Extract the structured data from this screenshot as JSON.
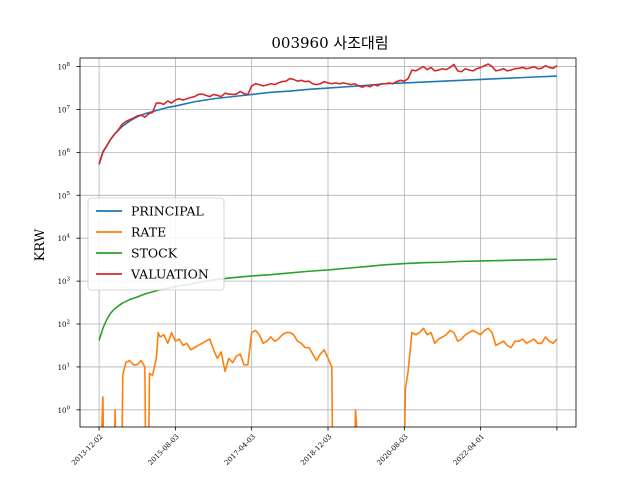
{
  "chart_data": {
    "type": "line",
    "title": "003960 사조대림",
    "ylabel": "KRW",
    "xlabel": "",
    "yscale": "log",
    "ylim_exp": [
      -0.4,
      8.2
    ],
    "y_ticks": [
      {
        "exp": 0,
        "label": "10^0"
      },
      {
        "exp": 1,
        "label": "10^1"
      },
      {
        "exp": 2,
        "label": "10^2"
      },
      {
        "exp": 3,
        "label": "10^3"
      },
      {
        "exp": 4,
        "label": "10^4"
      },
      {
        "exp": 5,
        "label": "10^5"
      },
      {
        "exp": 6,
        "label": "10^6"
      },
      {
        "exp": 7,
        "label": "10^7"
      },
      {
        "exp": 8,
        "label": "10^8"
      }
    ],
    "x_ticks": [
      {
        "t": 0,
        "label": "2013-12-02"
      },
      {
        "t": 20,
        "label": "2015-08-03"
      },
      {
        "t": 40,
        "label": "2017-04-03"
      },
      {
        "t": 60,
        "label": "2018-12-03"
      },
      {
        "t": 80,
        "label": "2020-08-03"
      },
      {
        "t": 100,
        "label": "2022-04-01"
      },
      {
        "t": 120,
        "label": ""
      }
    ],
    "xlim": [
      -5,
      125
    ],
    "grid": true,
    "legend_position": "center-left",
    "series": [
      {
        "name": "PRINCIPAL",
        "color": "#1f77b4",
        "points": [
          [
            0,
            5.72
          ],
          [
            1,
            6.0
          ],
          [
            2,
            6.15
          ],
          [
            3,
            6.3
          ],
          [
            4,
            6.42
          ],
          [
            6,
            6.6
          ],
          [
            8,
            6.73
          ],
          [
            10,
            6.83
          ],
          [
            12,
            6.9
          ],
          [
            14,
            6.95
          ],
          [
            16,
            7.0
          ],
          [
            18,
            7.05
          ],
          [
            20,
            7.08
          ],
          [
            25,
            7.18
          ],
          [
            30,
            7.25
          ],
          [
            35,
            7.3
          ],
          [
            40,
            7.35
          ],
          [
            45,
            7.4
          ],
          [
            50,
            7.43
          ],
          [
            55,
            7.47
          ],
          [
            60,
            7.5
          ],
          [
            65,
            7.53
          ],
          [
            70,
            7.56
          ],
          [
            75,
            7.6
          ],
          [
            80,
            7.62
          ],
          [
            85,
            7.64
          ],
          [
            90,
            7.66
          ],
          [
            95,
            7.68
          ],
          [
            100,
            7.7
          ],
          [
            105,
            7.72
          ],
          [
            110,
            7.74
          ],
          [
            115,
            7.76
          ],
          [
            120,
            7.78
          ]
        ]
      },
      {
        "name": "RATE",
        "color": "#ff7f0e",
        "points": [
          [
            0,
            -1
          ],
          [
            0.5,
            -1
          ],
          [
            1,
            0.3
          ],
          [
            1.2,
            -1
          ],
          [
            2,
            -1
          ],
          [
            4,
            -1
          ],
          [
            4.2,
            0
          ],
          [
            4.4,
            -1
          ],
          [
            6,
            -1
          ],
          [
            6.2,
            0.8
          ],
          [
            7,
            1.1
          ],
          [
            8,
            1.15
          ],
          [
            9,
            1.05
          ],
          [
            10,
            1.05
          ],
          [
            11,
            1.15
          ],
          [
            12,
            1.0
          ],
          [
            12.2,
            -1
          ],
          [
            13,
            -1
          ],
          [
            13.2,
            0.85
          ],
          [
            14,
            0.8
          ],
          [
            15,
            1.2
          ],
          [
            15.5,
            1.8
          ],
          [
            16,
            1.7
          ],
          [
            17,
            1.75
          ],
          [
            18,
            1.55
          ],
          [
            19,
            1.8
          ],
          [
            20,
            1.6
          ],
          [
            21,
            1.65
          ],
          [
            22,
            1.5
          ],
          [
            23,
            1.55
          ],
          [
            24,
            1.4
          ],
          [
            25,
            1.45
          ],
          [
            26,
            1.5
          ],
          [
            27,
            1.55
          ],
          [
            28,
            1.6
          ],
          [
            29,
            1.65
          ],
          [
            30,
            1.4
          ],
          [
            31,
            1.2
          ],
          [
            32,
            1.35
          ],
          [
            33,
            0.9
          ],
          [
            34,
            1.2
          ],
          [
            35,
            1.1
          ],
          [
            36,
            1.25
          ],
          [
            37,
            1.3
          ],
          [
            38,
            1.05
          ],
          [
            39,
            1.05
          ],
          [
            40,
            1.8
          ],
          [
            41,
            1.85
          ],
          [
            42,
            1.75
          ],
          [
            43,
            1.55
          ],
          [
            44,
            1.6
          ],
          [
            45,
            1.7
          ],
          [
            46,
            1.6
          ],
          [
            47,
            1.65
          ],
          [
            48,
            1.75
          ],
          [
            49,
            1.8
          ],
          [
            50,
            1.8
          ],
          [
            51,
            1.75
          ],
          [
            52,
            1.6
          ],
          [
            53,
            1.55
          ],
          [
            54,
            1.45
          ],
          [
            55,
            1.45
          ],
          [
            56,
            1.3
          ],
          [
            57,
            1.15
          ],
          [
            58,
            1.3
          ],
          [
            59,
            1.4
          ],
          [
            60,
            1.2
          ],
          [
            61,
            1.0
          ],
          [
            61.2,
            -1
          ],
          [
            67,
            -1
          ],
          [
            67.2,
            0
          ],
          [
            68,
            -1
          ],
          [
            80,
            -1
          ],
          [
            80.3,
            0.5
          ],
          [
            81,
            0.9
          ],
          [
            82,
            1.8
          ],
          [
            83,
            1.75
          ],
          [
            84,
            1.8
          ],
          [
            85,
            1.9
          ],
          [
            86,
            1.75
          ],
          [
            87,
            1.8
          ],
          [
            88,
            1.55
          ],
          [
            89,
            1.65
          ],
          [
            90,
            1.7
          ],
          [
            91,
            1.75
          ],
          [
            92,
            1.85
          ],
          [
            93,
            1.8
          ],
          [
            94,
            1.6
          ],
          [
            95,
            1.65
          ],
          [
            96,
            1.75
          ],
          [
            97,
            1.8
          ],
          [
            98,
            1.85
          ],
          [
            99,
            1.8
          ],
          [
            100,
            1.75
          ],
          [
            101,
            1.85
          ],
          [
            102,
            1.9
          ],
          [
            103,
            1.8
          ],
          [
            104,
            1.5
          ],
          [
            105,
            1.55
          ],
          [
            106,
            1.6
          ],
          [
            107,
            1.5
          ],
          [
            108,
            1.45
          ],
          [
            109,
            1.6
          ],
          [
            110,
            1.6
          ],
          [
            111,
            1.65
          ],
          [
            112,
            1.55
          ],
          [
            113,
            1.6
          ],
          [
            114,
            1.65
          ],
          [
            115,
            1.55
          ],
          [
            116,
            1.55
          ],
          [
            117,
            1.7
          ],
          [
            118,
            1.6
          ],
          [
            119,
            1.55
          ],
          [
            120,
            1.65
          ]
        ]
      },
      {
        "name": "STOCK",
        "color": "#2ca02c",
        "points": [
          [
            0,
            1.62
          ],
          [
            1,
            1.9
          ],
          [
            2,
            2.1
          ],
          [
            3,
            2.25
          ],
          [
            4,
            2.35
          ],
          [
            6,
            2.48
          ],
          [
            8,
            2.57
          ],
          [
            10,
            2.63
          ],
          [
            12,
            2.7
          ],
          [
            14,
            2.75
          ],
          [
            16,
            2.8
          ],
          [
            20,
            2.87
          ],
          [
            25,
            2.95
          ],
          [
            30,
            3.03
          ],
          [
            35,
            3.08
          ],
          [
            40,
            3.12
          ],
          [
            45,
            3.15
          ],
          [
            50,
            3.19
          ],
          [
            55,
            3.23
          ],
          [
            60,
            3.26
          ],
          [
            65,
            3.3
          ],
          [
            70,
            3.34
          ],
          [
            75,
            3.38
          ],
          [
            80,
            3.41
          ],
          [
            85,
            3.43
          ],
          [
            90,
            3.44
          ],
          [
            95,
            3.46
          ],
          [
            100,
            3.47
          ],
          [
            105,
            3.48
          ],
          [
            110,
            3.49
          ],
          [
            115,
            3.5
          ],
          [
            120,
            3.51
          ]
        ]
      },
      {
        "name": "VALUATION",
        "color": "#d62728",
        "points": [
          [
            0,
            5.72
          ],
          [
            1,
            6.02
          ],
          [
            2,
            6.15
          ],
          [
            3,
            6.3
          ],
          [
            4,
            6.42
          ],
          [
            5,
            6.52
          ],
          [
            6,
            6.65
          ],
          [
            7,
            6.72
          ],
          [
            8,
            6.76
          ],
          [
            9,
            6.8
          ],
          [
            10,
            6.85
          ],
          [
            11,
            6.87
          ],
          [
            12,
            6.82
          ],
          [
            13,
            6.9
          ],
          [
            14,
            6.93
          ],
          [
            15,
            7.15
          ],
          [
            16,
            7.15
          ],
          [
            17,
            7.12
          ],
          [
            18,
            7.2
          ],
          [
            19,
            7.15
          ],
          [
            20,
            7.22
          ],
          [
            21,
            7.25
          ],
          [
            22,
            7.22
          ],
          [
            23,
            7.25
          ],
          [
            24,
            7.28
          ],
          [
            25,
            7.3
          ],
          [
            26,
            7.35
          ],
          [
            27,
            7.36
          ],
          [
            28,
            7.33
          ],
          [
            29,
            7.3
          ],
          [
            30,
            7.35
          ],
          [
            31,
            7.33
          ],
          [
            32,
            7.3
          ],
          [
            33,
            7.38
          ],
          [
            34,
            7.36
          ],
          [
            35,
            7.35
          ],
          [
            36,
            7.36
          ],
          [
            37,
            7.42
          ],
          [
            38,
            7.37
          ],
          [
            39,
            7.35
          ],
          [
            40,
            7.55
          ],
          [
            41,
            7.6
          ],
          [
            42,
            7.58
          ],
          [
            43,
            7.55
          ],
          [
            44,
            7.57
          ],
          [
            45,
            7.6
          ],
          [
            46,
            7.58
          ],
          [
            47,
            7.62
          ],
          [
            48,
            7.65
          ],
          [
            49,
            7.66
          ],
          [
            50,
            7.72
          ],
          [
            51,
            7.7
          ],
          [
            52,
            7.66
          ],
          [
            53,
            7.68
          ],
          [
            54,
            7.65
          ],
          [
            55,
            7.66
          ],
          [
            56,
            7.6
          ],
          [
            57,
            7.58
          ],
          [
            58,
            7.6
          ],
          [
            59,
            7.65
          ],
          [
            60,
            7.62
          ],
          [
            61,
            7.6
          ],
          [
            62,
            7.62
          ],
          [
            63,
            7.6
          ],
          [
            64,
            7.62
          ],
          [
            65,
            7.6
          ],
          [
            66,
            7.58
          ],
          [
            67,
            7.6
          ],
          [
            68,
            7.55
          ],
          [
            69,
            7.52
          ],
          [
            70,
            7.56
          ],
          [
            71,
            7.53
          ],
          [
            72,
            7.58
          ],
          [
            73,
            7.55
          ],
          [
            74,
            7.6
          ],
          [
            75,
            7.6
          ],
          [
            76,
            7.62
          ],
          [
            77,
            7.6
          ],
          [
            78,
            7.65
          ],
          [
            79,
            7.68
          ],
          [
            80,
            7.66
          ],
          [
            81,
            7.72
          ],
          [
            82,
            7.92
          ],
          [
            83,
            7.9
          ],
          [
            84,
            7.95
          ],
          [
            85,
            8.0
          ],
          [
            86,
            7.93
          ],
          [
            87,
            7.98
          ],
          [
            88,
            7.9
          ],
          [
            89,
            7.92
          ],
          [
            90,
            7.95
          ],
          [
            91,
            7.93
          ],
          [
            92,
            7.98
          ],
          [
            93,
            8.05
          ],
          [
            94,
            7.9
          ],
          [
            95,
            7.88
          ],
          [
            96,
            7.95
          ],
          [
            97,
            7.92
          ],
          [
            98,
            7.9
          ],
          [
            99,
            7.95
          ],
          [
            100,
            7.98
          ],
          [
            101,
            8.02
          ],
          [
            102,
            8.06
          ],
          [
            103,
            8.0
          ],
          [
            104,
            7.9
          ],
          [
            105,
            7.92
          ],
          [
            106,
            7.95
          ],
          [
            107,
            7.9
          ],
          [
            108,
            7.92
          ],
          [
            109,
            7.95
          ],
          [
            110,
            7.96
          ],
          [
            111,
            7.98
          ],
          [
            112,
            7.95
          ],
          [
            113,
            7.97
          ],
          [
            114,
            8.0
          ],
          [
            115,
            7.95
          ],
          [
            116,
            7.96
          ],
          [
            117,
            8.02
          ],
          [
            118,
            7.98
          ],
          [
            119,
            7.96
          ],
          [
            120,
            8.02
          ]
        ]
      }
    ]
  }
}
